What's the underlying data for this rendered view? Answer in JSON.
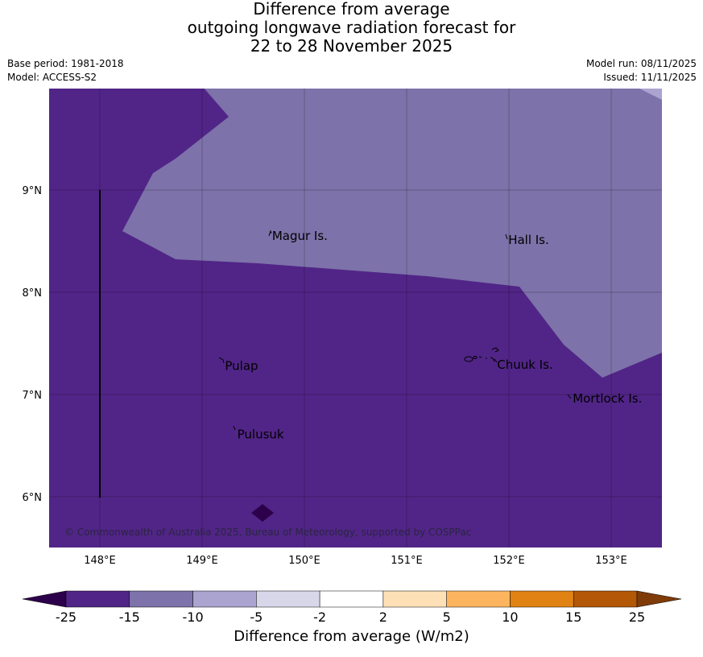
{
  "title": {
    "line1": "Difference from average",
    "line2": "outgoing longwave radiation forecast for",
    "line3": "22 to 28 November 2025"
  },
  "meta": {
    "base_period": "Base period: 1981-2018",
    "model": "Model: ACCESS-S2",
    "model_run": "Model run: 08/11/2025",
    "issued": "Issued: 11/11/2025"
  },
  "map": {
    "extent": {
      "lon_min": 147.5,
      "lon_max": 153.5,
      "lat_min": 5.5,
      "lat_max": 9.98
    },
    "lon_ticks": [
      {
        "value": 148,
        "label": "148°E"
      },
      {
        "value": 149,
        "label": "149°E"
      },
      {
        "value": 150,
        "label": "150°E"
      },
      {
        "value": 151,
        "label": "151°E"
      },
      {
        "value": 152,
        "label": "152°E"
      },
      {
        "value": 153,
        "label": "153°E"
      }
    ],
    "lat_ticks": [
      {
        "value": 9,
        "label": "9°N"
      },
      {
        "value": 8,
        "label": "8°N"
      },
      {
        "value": 7,
        "label": "7°N"
      },
      {
        "value": 6,
        "label": "6°N"
      }
    ],
    "places": [
      {
        "name": "Magur Is.",
        "lon": 149.66,
        "lat": 8.55
      },
      {
        "name": "Hall Is.",
        "lon": 151.97,
        "lat": 8.51
      },
      {
        "name": "Pulap",
        "lon": 149.2,
        "lat": 7.28
      },
      {
        "name": "Chuuk Is.",
        "lon": 151.86,
        "lat": 7.29
      },
      {
        "name": "Mortlock Is.",
        "lon": 152.6,
        "lat": 6.96
      },
      {
        "name": "Pulusuk",
        "lon": 149.32,
        "lat": 6.61
      }
    ],
    "fill_colors": {
      "base": "#512587",
      "band_minus15": "#7d72a9",
      "band_minus10": "#aba3d0",
      "below_minus25": "#2d004b"
    },
    "copyright": "© Commonwealth of Australia 2025, Bureau of Meteorology, supported by COSPPac"
  },
  "colorbar": {
    "title": "Difference from average (W/m2)",
    "boundaries": [
      "-25",
      "-15",
      "-10",
      "-5",
      "-2",
      "2",
      "5",
      "10",
      "15",
      "25"
    ],
    "colors": [
      "#512587",
      "#7d72a9",
      "#aba3d0",
      "#d7d7e9",
      "#ffffff",
      "#fde0b6",
      "#fcb55e",
      "#e08214",
      "#b35806"
    ],
    "extend_low_color": "#2d004b",
    "extend_high_color": "#7f3b08"
  }
}
